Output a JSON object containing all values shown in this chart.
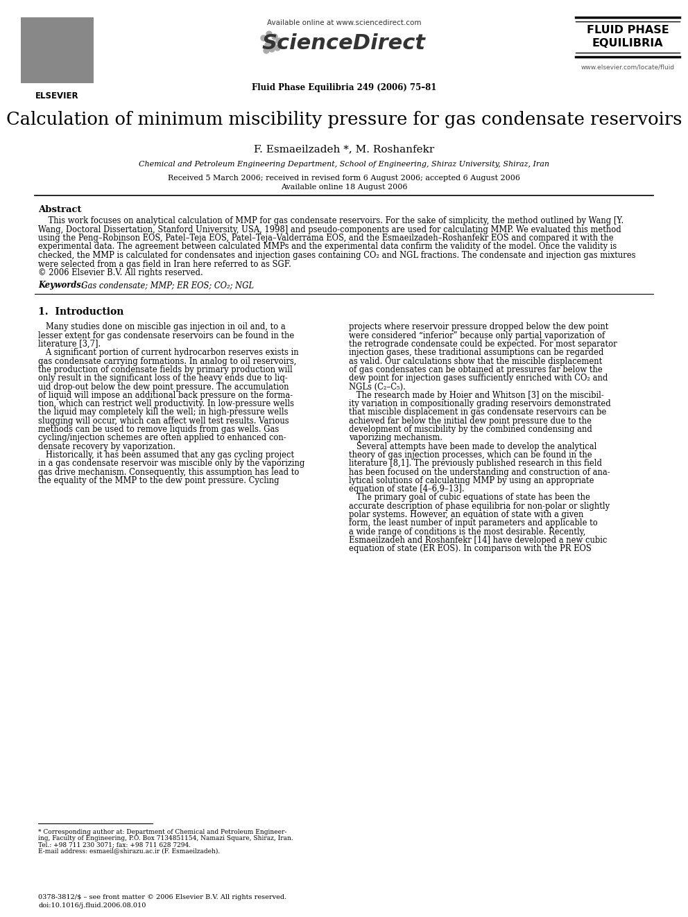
{
  "bg_color": "#ffffff",
  "header_text_available": "Available online at www.sciencedirect.com",
  "journal_name_center": "ScienceDirect",
  "journal_info": "Fluid Phase Equilibria 249 (2006) 75–81",
  "journal_logo_line1": "FLUID PHASE",
  "journal_logo_line2": "EQUILIBRIA",
  "journal_url": "www.elsevier.com/locate/fluid",
  "elsevier_label": "ELSEVIER",
  "article_title": "Calculation of minimum miscibility pressure for gas condensate reservoirs",
  "authors": "F. Esmaeilzadeh *, M. Roshanfekr",
  "affiliation": "Chemical and Petroleum Engineering Department, School of Engineering, Shiraz University, Shiraz, Iran",
  "received_dates": "Received 5 March 2006; received in revised form 6 August 2006; accepted 6 August 2006",
  "available_online": "Available online 18 August 2006",
  "abstract_title": "Abstract",
  "abstract_text_lines": [
    "    This work focuses on analytical calculation of MMP for gas condensate reservoirs. For the sake of simplicity, the method outlined by Wang [Y.",
    "Wang, Doctoral Dissertation, Stanford University, USA, 1998] and pseudo-components are used for calculating MMP. We evaluated this method",
    "using the Peng–Robinson EOS, Patel–Teja EOS, Patel–Teja–Valderrama EOS, and the Esmaeilzadeh–Roshanfekr EOS and compared it with the",
    "experimental data. The agreement between calculated MMPs and the experimental data confirm the validity of the model. Once the validity is",
    "checked, the MMP is calculated for condensates and injection gases containing CO₂ and NGL fractions. The condensate and injection gas mixtures",
    "were selected from a gas field in Iran here referred to as SGF.",
    "© 2006 Elsevier B.V. All rights reserved."
  ],
  "keywords_label": "Keywords:",
  "keywords_text": "  Gas condensate; MMP; ER EOS; CO₂; NGL",
  "section1_title": "1.  Introduction",
  "col1_lines": [
    "   Many studies done on miscible gas injection in oil and, to a",
    "lesser extent for gas condensate reservoirs can be found in the",
    "literature [3,7].",
    "   A significant portion of current hydrocarbon reserves exists in",
    "gas condensate carrying formations. In analog to oil reservoirs,",
    "the production of condensate fields by primary production will",
    "only result in the significant loss of the heavy ends due to liq-",
    "uid drop-out below the dew point pressure. The accumulation",
    "of liquid will impose an additional back pressure on the forma-",
    "tion, which can restrict well productivity. In low-pressure wells",
    "the liquid may completely kill the well; in high-pressure wells",
    "slugging will occur, which can affect well test results. Various",
    "methods can be used to remove liquids from gas wells. Gas",
    "cycling/injection schemes are often applied to enhanced con-",
    "densate recovery by vaporization.",
    "   Historically, it has been assumed that any gas cycling project",
    "in a gas condensate reservoir was miscible only by the vaporizing",
    "gas drive mechanism. Consequently, this assumption has lead to",
    "the equality of the MMP to the dew point pressure. Cycling"
  ],
  "col2_lines": [
    "projects where reservoir pressure dropped below the dew point",
    "were considered “inferior” because only partial vaporization of",
    "the retrograde condensate could be expected. For most separator",
    "injection gases, these traditional assumptions can be regarded",
    "as valid. Our calculations show that the miscible displacement",
    "of gas condensates can be obtained at pressures far below the",
    "dew point for injection gases sufficiently enriched with CO₂ and",
    "NGLs (C₂–C₅).",
    "   The research made by Hoier and Whitson [3] on the miscibil-",
    "ity variation in compositionally grading reservoirs demonstrated",
    "that miscible displacement in gas condensate reservoirs can be",
    "achieved far below the initial dew point pressure due to the",
    "development of miscibility by the combined condensing and",
    "vaporizing mechanism.",
    "   Several attempts have been made to develop the analytical",
    "theory of gas injection processes, which can be found in the",
    "literature [8,1]. The previously published research in this field",
    "has been focused on the understanding and construction of ana-",
    "lytical solutions of calculating MMP by using an appropriate",
    "equation of state [4–6,9–13].",
    "   The primary goal of cubic equations of state has been the",
    "accurate description of phase equilibria for non-polar or slightly",
    "polar systems. However, an equation of state with a given",
    "form, the least number of input parameters and applicable to",
    "a wide range of conditions is the most desirable. Recently,",
    "Esmaeilzadeh and Roshanfekr [14] have developed a new cubic",
    "equation of state (ER EOS). In comparison with the PR EOS"
  ],
  "footnote_line1": "* Corresponding author at: Department of Chemical and Petroleum Engineer-",
  "footnote_line2": "ing, Faculty of Engineering, P.O. Box 7134851154, Namazi Square, Shiraz, Iran.",
  "footnote_line3": "Tel.: +98 711 230 3071; fax: +98 711 628 7294.",
  "footnote_line4": "E-mail address: esmaeil@shirazu.ac.ir (F. Esmaeilzadeh).",
  "footer_issn": "0378-3812/$ – see front matter © 2006 Elsevier B.V. All rights reserved.",
  "footer_doi": "doi:10.1016/j.fluid.2006.08.010"
}
